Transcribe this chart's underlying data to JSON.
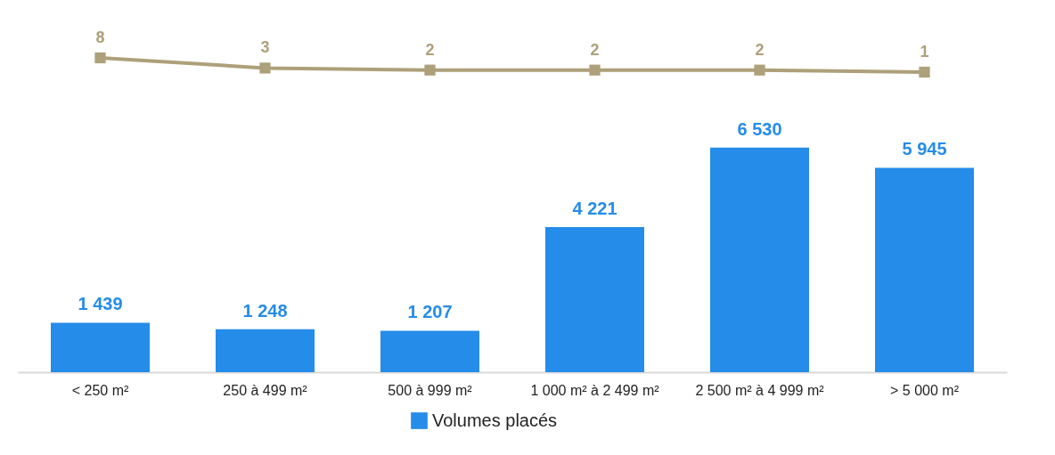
{
  "chart_data": [
    {
      "type": "line",
      "categories": [
        null,
        null,
        null,
        null,
        null,
        null
      ],
      "tick_labels": false,
      "data_labels": true,
      "series": [
        {
          "color": "#ada07a",
          "values": [
            8,
            3,
            2,
            2,
            2,
            1
          ]
        }
      ],
      "marker": "square",
      "line_style": "solid",
      "grid": false
    },
    {
      "type": "bar",
      "categories": [
        "< 250 m²",
        "250 à 499 m²",
        "500 à 999 m²",
        "1 000 m² à 2 499 m²",
        "2 500 m² à 4 999 m²",
        "> 5 000 m²"
      ],
      "series": [
        {
          "name": "Volumes placés",
          "color": "#258ce9",
          "values": [
            1439,
            1248,
            1207,
            4221,
            6530,
            5945
          ],
          "value_labels": [
            "1 439",
            "1 248",
            "1 207",
            "4 221",
            "6 530",
            "5 945"
          ]
        }
      ],
      "legend": "bottom",
      "grid": false
    }
  ]
}
